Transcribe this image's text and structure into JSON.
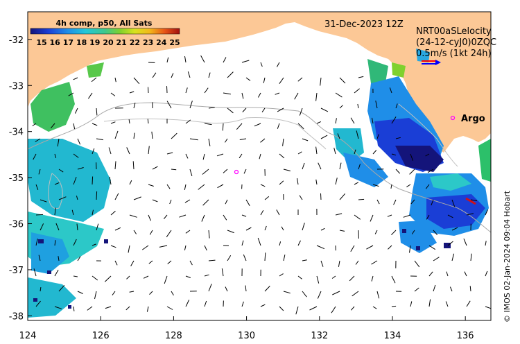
{
  "map": {
    "date_label": "31-Dec-2023 12Z",
    "velocity_title_a": "NRT00aSLelocity",
    "velocity_title_b": "(24-12-cyJ0)0ZQC",
    "scale_label": "0.5m/s (1kt 24h)",
    "argo_label": "Argo",
    "credit": "© IMOS 02-Jan-2024 09:04 Hobart",
    "sst_colorbar": {
      "title": "4h comp, p50, All Sats",
      "ticks": [
        "15",
        "16",
        "17",
        "18",
        "19",
        "20",
        "21",
        "22",
        "23",
        "24",
        "25"
      ],
      "min": 15,
      "max": 25
    },
    "x_axis": {
      "ticks": [
        "124",
        "126",
        "128",
        "130",
        "132",
        "134",
        "136"
      ],
      "values": [
        124,
        126,
        128,
        130,
        132,
        134,
        136
      ],
      "range": [
        124,
        136.7
      ]
    },
    "y_axis": {
      "ticks": [
        "-32",
        "-33",
        "-34",
        "-35",
        "-36",
        "-37",
        "-38"
      ],
      "values": [
        -32,
        -33,
        -34,
        -35,
        -36,
        -37,
        -38
      ],
      "range": [
        -38.1,
        -31.4
      ]
    },
    "colors": {
      "land": "#fcc896",
      "ocean": "#ffffff",
      "scale_arrow_red": "#ff0000",
      "scale_arrow_blue": "#0000ff",
      "argo": "#ff00ff"
    }
  }
}
